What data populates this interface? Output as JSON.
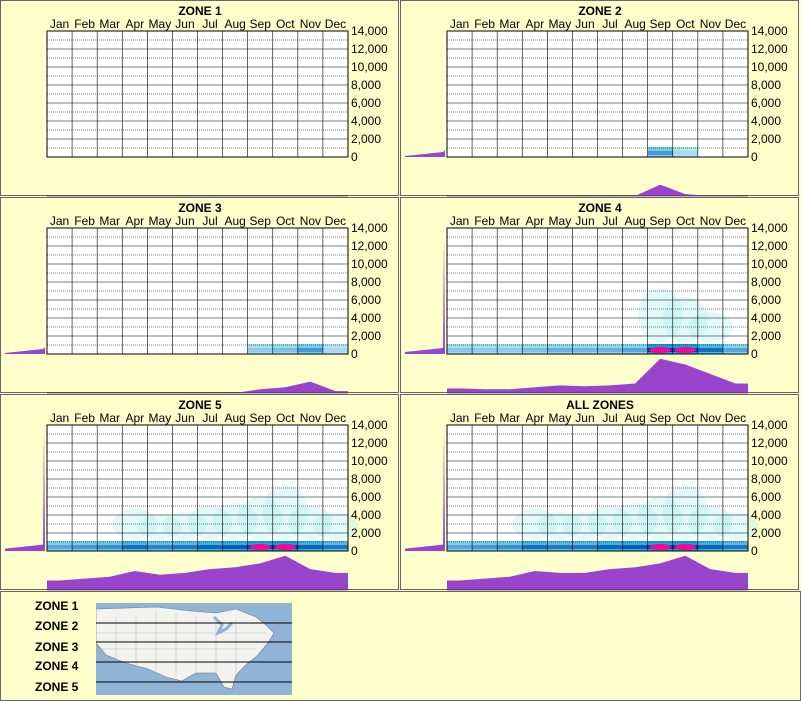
{
  "months": [
    "Jan",
    "Feb",
    "Mar",
    "Apr",
    "May",
    "Jun",
    "Jul",
    "Aug",
    "Sep",
    "Oct",
    "Nov",
    "Dec"
  ],
  "yticks": [
    "14,000",
    "12,000",
    "10,000",
    "8,000",
    "6,000",
    "4,000",
    "2,000",
    "0"
  ],
  "colors": {
    "background": "#ffffcc",
    "profile": "#9944cc",
    "density_low": "#aaeeee",
    "density_mid": "#00aadd",
    "density_high": "#0033aa",
    "density_peak": "#ff0099"
  },
  "chart_data": [
    {
      "type": "heatmap",
      "title": "ZONE 1",
      "ylim": [
        0,
        14000
      ],
      "activity": [
        0,
        0,
        0,
        0,
        0,
        0,
        0,
        0,
        0,
        0,
        0,
        0
      ],
      "elev_spike": 0.0,
      "elev_base": 0.0
    },
    {
      "type": "heatmap",
      "title": "ZONE 2",
      "ylim": [
        0,
        14000
      ],
      "activity": [
        0,
        0,
        0,
        0,
        0,
        0,
        0,
        0,
        0.3,
        0.05,
        0,
        0
      ],
      "elev_spike": 0.1,
      "elev_base": 0.05
    },
    {
      "type": "heatmap",
      "title": "ZONE 3",
      "ylim": [
        0,
        14000
      ],
      "activity": [
        0,
        0,
        0,
        0,
        0,
        0,
        0,
        0,
        0.1,
        0.15,
        0.3,
        0.05
      ],
      "elev_spike": 0.1,
      "elev_base": 0.05
    },
    {
      "type": "heatmap",
      "title": "ZONE 4",
      "ylim": [
        0,
        14000
      ],
      "activity": [
        0.12,
        0.1,
        0.1,
        0.15,
        0.2,
        0.18,
        0.2,
        0.25,
        0.9,
        0.75,
        0.5,
        0.25
      ],
      "elev_spike": 0.9,
      "elev_base": 0.1
    },
    {
      "type": "heatmap",
      "title": "ZONE 5",
      "ylim": [
        0,
        14000
      ],
      "activity": [
        0.25,
        0.3,
        0.35,
        0.5,
        0.4,
        0.45,
        0.55,
        0.6,
        0.7,
        0.9,
        0.55,
        0.45
      ],
      "elev_spike": 0.95,
      "elev_base": 0.12
    },
    {
      "type": "heatmap",
      "title": "ALL ZONES",
      "ylim": [
        0,
        14000
      ],
      "activity": [
        0.25,
        0.3,
        0.35,
        0.5,
        0.45,
        0.45,
        0.55,
        0.6,
        0.7,
        0.9,
        0.55,
        0.45
      ],
      "elev_spike": 0.95,
      "elev_base": 0.12
    }
  ],
  "legend": {
    "zones": [
      "ZONE 1",
      "ZONE 2",
      "ZONE 3",
      "ZONE 4",
      "ZONE 5"
    ]
  }
}
